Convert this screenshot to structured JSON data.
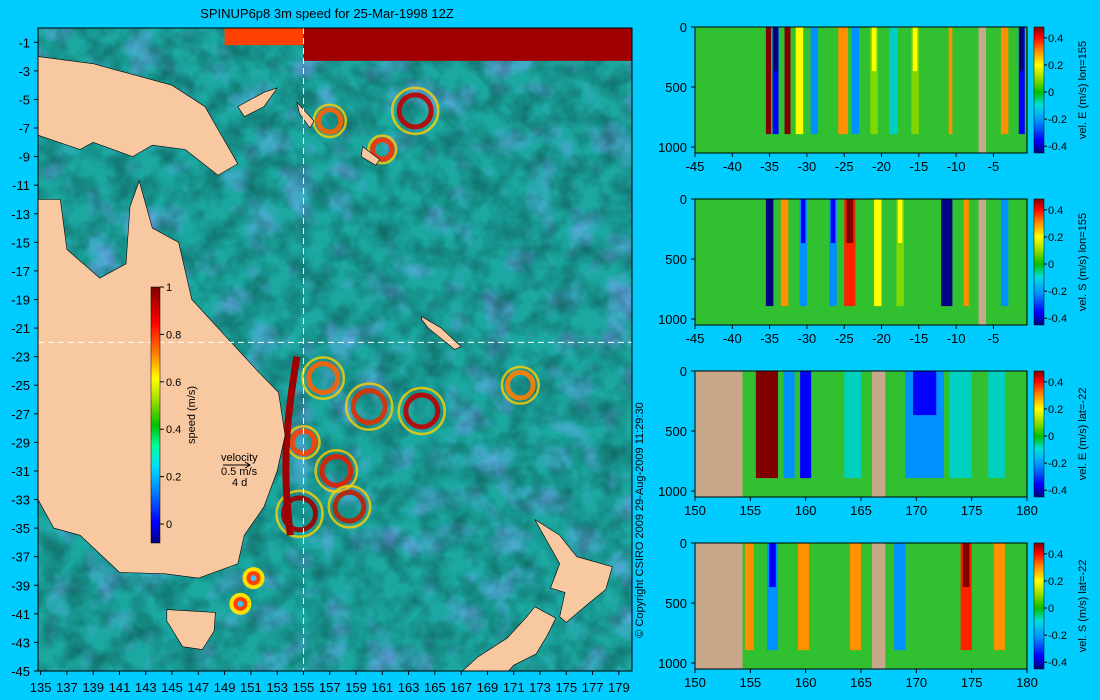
{
  "title": "SPINUP6p8 3m speed for 25-Mar-1998 12Z",
  "copyright": "© Copyright CSIRO 2009   29-Aug-2009 11:29:30",
  "colors": {
    "background": "#00ccff",
    "land": "#f8c8a0",
    "section_land": "#c8a888",
    "crosshair": "#ffffff"
  },
  "map": {
    "xticks": [
      135,
      137,
      139,
      141,
      143,
      145,
      147,
      149,
      151,
      153,
      155,
      157,
      159,
      161,
      163,
      165,
      167,
      169,
      171,
      173,
      175,
      177,
      179
    ],
    "yticks": [
      -1,
      -3,
      -5,
      -7,
      -9,
      -11,
      -13,
      -15,
      -17,
      -19,
      -21,
      -23,
      -25,
      -27,
      -29,
      -31,
      -33,
      -35,
      -37,
      -39,
      -41,
      -43,
      -45
    ],
    "xlim": [
      134.8,
      180
    ],
    "ylim": [
      -45,
      0
    ],
    "crosshair_lon": 155,
    "crosshair_lat": -22,
    "colorbar": {
      "label": "speed (m/s)",
      "ticks": [
        "1",
        "0.8",
        "0.6",
        "0.4",
        "0.2",
        "0"
      ],
      "tick_values": [
        1,
        0.8,
        0.6,
        0.4,
        0.2,
        0
      ],
      "range": [
        -0.08,
        1.0
      ]
    },
    "velocity_key": {
      "label": "velocity",
      "speed": "0.5 m/s",
      "time": "4 d"
    }
  },
  "chart_data": [
    {
      "type": "heatmap",
      "title": "SPINUP6p8 3m speed for 25-Mar-1998 12Z",
      "xlabel": "",
      "ylabel": "",
      "xlim": [
        134.8,
        180
      ],
      "ylim": [
        -45,
        0
      ],
      "colorbar_label": "speed (m/s)",
      "colorbar_range": [
        0,
        1
      ]
    },
    {
      "type": "heatmap",
      "label": "vel. E (m/s) lon=155",
      "xticks": [
        "-45",
        "-40",
        "-35",
        "-30",
        "-25",
        "-20",
        "-15",
        "-10",
        "-5"
      ],
      "xtick_values": [
        -45,
        -40,
        -35,
        -30,
        -25,
        -20,
        -15,
        -10,
        -5
      ],
      "xlim": [
        -45,
        -0.5
      ],
      "yticks": [
        "0",
        "500",
        "1000"
      ],
      "ytick_values": [
        0,
        500,
        1000
      ],
      "ylim": [
        1050,
        0
      ],
      "colorbar_ticks": [
        "0.4",
        "0.2",
        "0",
        "-0.2",
        "-0.4"
      ],
      "colorbar_tick_values": [
        0.4,
        0.2,
        0,
        -0.2,
        -0.4
      ],
      "colorbar_range": [
        -0.45,
        0.48
      ],
      "bands": [
        {
          "x0": -35.5,
          "x1": -34.8,
          "v": 0.45
        },
        {
          "x0": -34.6,
          "x1": -33.8,
          "v": -0.4
        },
        {
          "x0": -33,
          "x1": -32.2,
          "v": 0.45
        },
        {
          "x0": -31.5,
          "x1": -30.5,
          "v": 0.2
        },
        {
          "x0": -29.5,
          "x1": -28.5,
          "v": -0.2
        },
        {
          "x0": -25.8,
          "x1": -24.5,
          "v": 0.3
        },
        {
          "x0": -24,
          "x1": -23,
          "v": -0.2
        },
        {
          "x0": -21.5,
          "x1": -20.5,
          "v": 0.15
        },
        {
          "x0": -19,
          "x1": -17.8,
          "v": -0.15
        },
        {
          "x0": -16,
          "x1": -15,
          "v": 0.15
        },
        {
          "x0": -11,
          "x1": -10.5,
          "v": 0.3
        },
        {
          "x0": -4,
          "x1": -3,
          "v": 0.3
        },
        {
          "x0": -1.6,
          "x1": -0.8,
          "v": -0.4
        }
      ],
      "land": [
        {
          "x0": -7,
          "x1": -6
        }
      ]
    },
    {
      "type": "heatmap",
      "label": "vel. S (m/s) lon=155",
      "xticks": [
        "-45",
        "-40",
        "-35",
        "-30",
        "-25",
        "-20",
        "-15",
        "-10",
        "-5"
      ],
      "xtick_values": [
        -45,
        -40,
        -35,
        -30,
        -25,
        -20,
        -15,
        -10,
        -5
      ],
      "xlim": [
        -45,
        -0.5
      ],
      "yticks": [
        "0",
        "500",
        "1000"
      ],
      "ytick_values": [
        0,
        500,
        1000
      ],
      "ylim": [
        1050,
        0
      ],
      "colorbar_ticks": [
        "0.4",
        "0.2",
        "0",
        "-0.2",
        "-0.4"
      ],
      "colorbar_tick_values": [
        0.4,
        0.2,
        0,
        -0.2,
        -0.4
      ],
      "colorbar_range": [
        -0.45,
        0.48
      ],
      "bands": [
        {
          "x0": -35.5,
          "x1": -34.5,
          "v": -0.42
        },
        {
          "x0": -33.5,
          "x1": -32.5,
          "v": 0.25
        },
        {
          "x0": -31,
          "x1": -30,
          "v": -0.3
        },
        {
          "x0": -27,
          "x1": -26,
          "v": -0.3
        },
        {
          "x0": -25,
          "x1": -23.5,
          "v": 0.4
        },
        {
          "x0": -21,
          "x1": -20,
          "v": 0.2
        },
        {
          "x0": -18,
          "x1": -17,
          "v": 0.15
        },
        {
          "x0": -12,
          "x1": -10.5,
          "v": -0.42
        },
        {
          "x0": -9,
          "x1": -8.3,
          "v": 0.3
        },
        {
          "x0": -4,
          "x1": -3,
          "v": -0.2
        }
      ],
      "land": [
        {
          "x0": -7,
          "x1": -6
        }
      ]
    },
    {
      "type": "heatmap",
      "label": "vel. E (m/s) lat=-22",
      "xticks": [
        "150",
        "155",
        "160",
        "165",
        "170",
        "175",
        "180"
      ],
      "xtick_values": [
        150,
        155,
        160,
        165,
        170,
        175,
        180
      ],
      "xlim": [
        150,
        180
      ],
      "yticks": [
        "0",
        "500",
        "1000"
      ],
      "ytick_values": [
        0,
        500,
        1000
      ],
      "ylim": [
        1050,
        0
      ],
      "colorbar_ticks": [
        "0.4",
        "0.2",
        "0",
        "-0.2",
        "-0.4"
      ],
      "colorbar_tick_values": [
        0.4,
        0.2,
        0,
        -0.2,
        -0.4
      ],
      "colorbar_range": [
        -0.45,
        0.48
      ],
      "bands": [
        {
          "x0": 155.5,
          "x1": 157.5,
          "v": 0.45
        },
        {
          "x0": 158,
          "x1": 159,
          "v": -0.25
        },
        {
          "x0": 159.5,
          "x1": 160.5,
          "v": -0.35
        },
        {
          "x0": 163.5,
          "x1": 165,
          "v": -0.15
        },
        {
          "x0": 169,
          "x1": 172.5,
          "v": -0.3
        },
        {
          "x0": 173,
          "x1": 175,
          "v": -0.15
        },
        {
          "x0": 176.5,
          "x1": 178,
          "v": -0.15
        }
      ],
      "land": [
        {
          "x0": 150,
          "x1": 154.3
        },
        {
          "x0": 166,
          "x1": 167.2
        }
      ]
    },
    {
      "type": "heatmap",
      "label": "vel. S (m/s) lat=-22",
      "xticks": [
        "150",
        "155",
        "160",
        "165",
        "170",
        "175",
        "180"
      ],
      "xtick_values": [
        150,
        155,
        160,
        165,
        170,
        175,
        180
      ],
      "xlim": [
        150,
        180
      ],
      "yticks": [
        "0",
        "500",
        "1000"
      ],
      "ytick_values": [
        0,
        500,
        1000
      ],
      "ylim": [
        1050,
        0
      ],
      "colorbar_ticks": [
        "0.4",
        "0.2",
        "0",
        "-0.2",
        "-0.4"
      ],
      "colorbar_tick_values": [
        0.4,
        0.2,
        0,
        -0.2,
        -0.4
      ],
      "colorbar_range": [
        -0.45,
        0.48
      ],
      "bands": [
        {
          "x0": 153,
          "x1": 154,
          "v": 0.45
        },
        {
          "x0": 154.5,
          "x1": 155.3,
          "v": 0.3
        },
        {
          "x0": 156.5,
          "x1": 157.5,
          "v": -0.3
        },
        {
          "x0": 159.3,
          "x1": 160.3,
          "v": 0.3
        },
        {
          "x0": 164,
          "x1": 165,
          "v": 0.3
        },
        {
          "x0": 168,
          "x1": 169,
          "v": -0.2
        },
        {
          "x0": 174,
          "x1": 175,
          "v": 0.4
        },
        {
          "x0": 177,
          "x1": 178,
          "v": 0.3
        }
      ],
      "land": [
        {
          "x0": 150,
          "x1": 154.3
        },
        {
          "x0": 166,
          "x1": 167.2
        }
      ]
    }
  ]
}
